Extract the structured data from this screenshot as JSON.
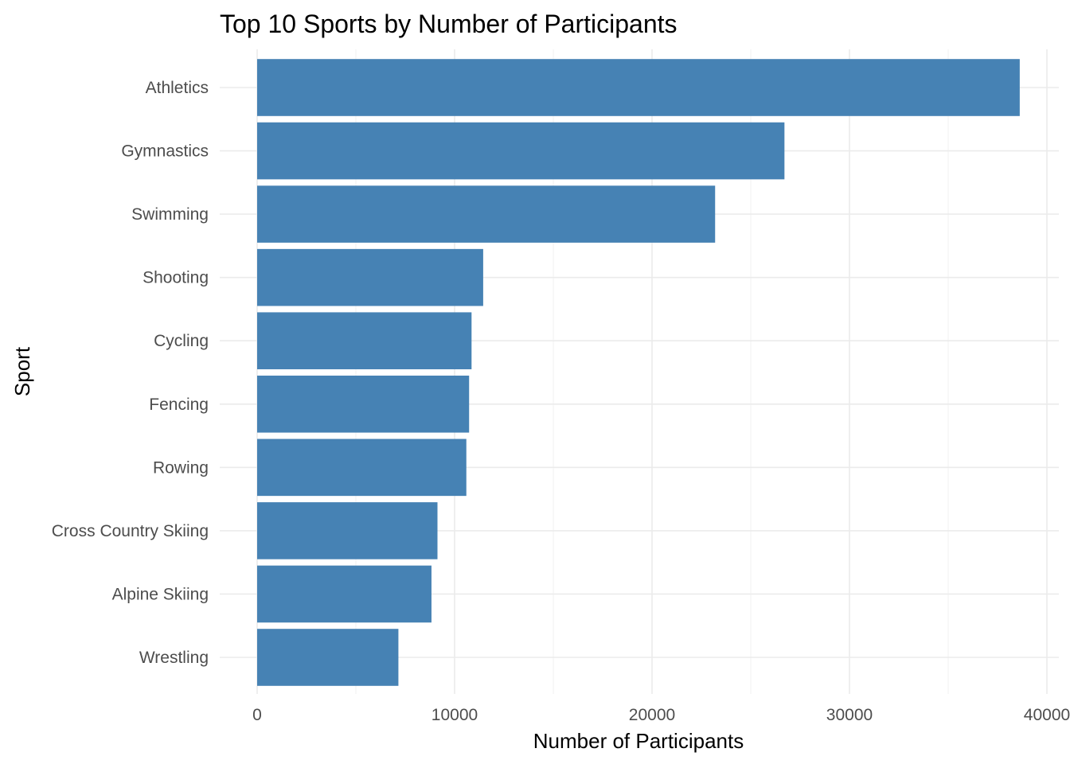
{
  "chart_data": {
    "type": "bar",
    "orientation": "horizontal",
    "title": "Top 10 Sports by Number of Participants",
    "xlabel": "Number of Participants",
    "ylabel": "Sport",
    "categories": [
      "Athletics",
      "Gymnastics",
      "Swimming",
      "Shooting",
      "Cycling",
      "Fencing",
      "Rowing",
      "Cross Country Skiing",
      "Alpine Skiing",
      "Wrestling"
    ],
    "values": [
      38624,
      26707,
      23195,
      11448,
      10859,
      10735,
      10595,
      9133,
      8829,
      7154
    ],
    "xlim": [
      0,
      40000
    ],
    "x_ticks": [
      0,
      10000,
      20000,
      30000,
      40000
    ],
    "x_tick_labels": [
      "0",
      "10000",
      "20000",
      "30000",
      "40000"
    ],
    "bar_color": "#4682B4",
    "grid": true,
    "legend": "none"
  }
}
